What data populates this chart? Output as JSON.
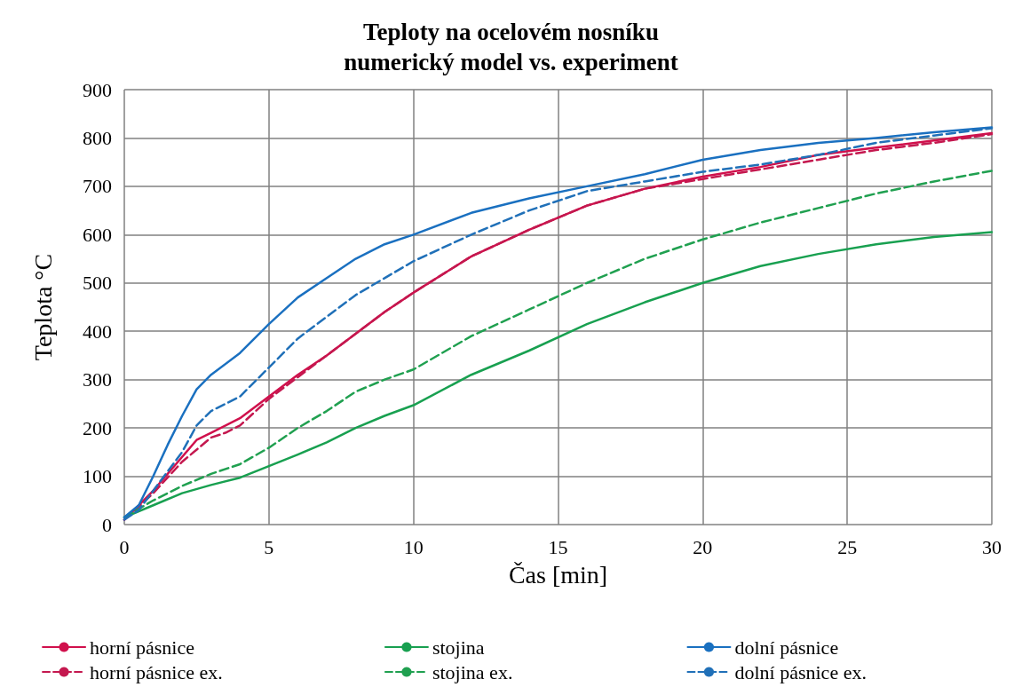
{
  "chart_data": {
    "type": "line",
    "title": "Teploty na ocelovém nosníku\nnumerický model vs. experiment",
    "xlabel": "Čas [min]",
    "ylabel": "Teplota °C",
    "xlim": [
      0,
      30
    ],
    "xticks": [
      0,
      5,
      10,
      15,
      20,
      25,
      30
    ],
    "ylim": [
      0,
      900
    ],
    "yticks": [
      0,
      100,
      200,
      300,
      400,
      500,
      600,
      700,
      800,
      900
    ],
    "grid": true,
    "legend": "bottom",
    "marker": "none",
    "series": [
      {
        "name": "horní pásnice",
        "color": "#d0104c",
        "line_style": "solid",
        "x": [
          0,
          1,
          2,
          2.5,
          3,
          4,
          5,
          6,
          7,
          8,
          9,
          10,
          12,
          14,
          16,
          18,
          20,
          22,
          24,
          26,
          28,
          30
        ],
        "values": [
          10,
          70,
          140,
          175,
          190,
          220,
          265,
          310,
          350,
          395,
          440,
          480,
          555,
          610,
          660,
          695,
          720,
          740,
          765,
          780,
          795,
          810
        ]
      },
      {
        "name": "horní pásnice ex.",
        "color": "#c4184f",
        "line_style": "dashed",
        "x": [
          0,
          1,
          2,
          3,
          3.5,
          4,
          5,
          6,
          7,
          8,
          9,
          10,
          12,
          14,
          16,
          18,
          20,
          22,
          24,
          26,
          28,
          30
        ],
        "values": [
          10,
          65,
          130,
          180,
          190,
          205,
          260,
          305,
          350,
          395,
          440,
          480,
          555,
          610,
          660,
          695,
          715,
          735,
          755,
          775,
          790,
          808
        ]
      },
      {
        "name": "stojina",
        "color": "#18a050",
        "line_style": "solid",
        "x": [
          0,
          1,
          2,
          3,
          4,
          5,
          6,
          7,
          8,
          9,
          10,
          12,
          14,
          16,
          18,
          20,
          22,
          24,
          26,
          28,
          30
        ],
        "values": [
          15,
          40,
          65,
          82,
          97,
          121,
          145,
          170,
          200,
          225,
          247,
          310,
          360,
          415,
          460,
          500,
          535,
          560,
          580,
          595,
          605
        ]
      },
      {
        "name": "stojina ex.",
        "color": "#20a050",
        "line_style": "dashed",
        "x": [
          0,
          1,
          2,
          3,
          4,
          5,
          6,
          7,
          8,
          9,
          10,
          12,
          14,
          16,
          18,
          20,
          22,
          24,
          26,
          28,
          30
        ],
        "values": [
          15,
          50,
          80,
          105,
          125,
          159,
          200,
          235,
          275,
          300,
          321,
          390,
          445,
          500,
          550,
          590,
          625,
          655,
          685,
          710,
          732
        ]
      },
      {
        "name": "dolní pásnice",
        "color": "#1a70c0",
        "line_style": "solid",
        "x": [
          0,
          0.5,
          1,
          1.5,
          2,
          2.5,
          3,
          4,
          5,
          6,
          7,
          8,
          9,
          10,
          12,
          14,
          16,
          18,
          20,
          22,
          24,
          26,
          28,
          30
        ],
        "values": [
          15,
          40,
          100,
          165,
          225,
          280,
          310,
          355,
          415,
          470,
          510,
          550,
          580,
          600,
          645,
          675,
          700,
          725,
          755,
          775,
          790,
          800,
          812,
          822
        ]
      },
      {
        "name": "dolní pásnice ex.",
        "color": "#2070b8",
        "line_style": "dashed",
        "x": [
          0,
          0.5,
          1,
          2,
          2.5,
          3,
          4,
          5,
          6,
          7,
          8,
          9,
          10,
          12,
          14,
          16,
          18,
          20,
          22,
          24,
          26,
          28,
          30
        ],
        "values": [
          10,
          30,
          70,
          150,
          205,
          235,
          265,
          325,
          385,
          430,
          475,
          510,
          545,
          600,
          650,
          690,
          710,
          730,
          745,
          765,
          790,
          805,
          820
        ]
      }
    ]
  }
}
